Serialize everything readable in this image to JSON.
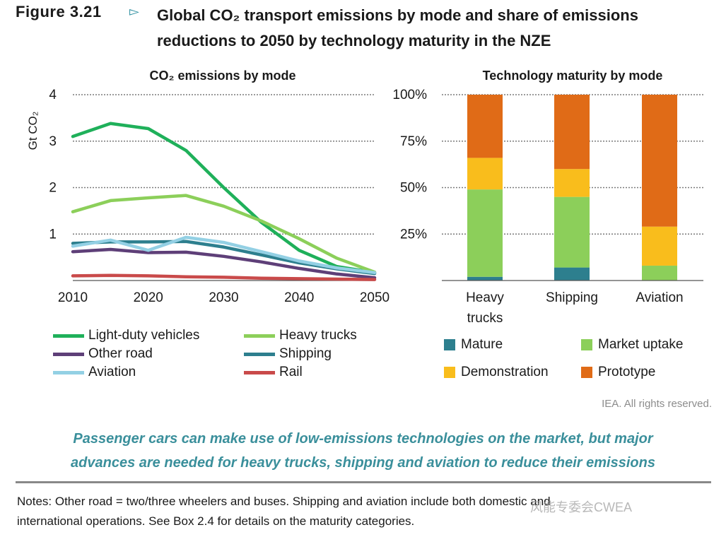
{
  "header": {
    "figure_label": "Figure 3.21",
    "arrow": "▻",
    "title_line1": "Global CO₂ transport emissions by mode and share of emissions",
    "title_line2": "reductions to 2050 by technology maturity in the NZE"
  },
  "chart_data": [
    {
      "type": "line",
      "title": "CO₂ emissions by mode",
      "ylabel": "Gt CO₂",
      "xlabel": "",
      "x": [
        2010,
        2015,
        2020,
        2025,
        2030,
        2035,
        2040,
        2045,
        2050
      ],
      "xticks": [
        "2010",
        "2020",
        "2030",
        "2040",
        "2050"
      ],
      "yticks": [
        "1",
        "2",
        "3",
        "4"
      ],
      "xlim": [
        2010,
        2050
      ],
      "ylim": [
        0,
        4
      ],
      "grid": true,
      "series": [
        {
          "name": "Light-duty vehicles",
          "color": "#1fb05a",
          "values": [
            3.1,
            3.38,
            3.27,
            2.8,
            2.0,
            1.25,
            0.65,
            0.3,
            0.17
          ]
        },
        {
          "name": "Heavy trucks",
          "color": "#8ccf5a",
          "values": [
            1.48,
            1.72,
            1.78,
            1.83,
            1.6,
            1.28,
            0.9,
            0.48,
            0.18
          ]
        },
        {
          "name": "Other road",
          "color": "#5e3f78",
          "values": [
            0.62,
            0.67,
            0.6,
            0.61,
            0.52,
            0.4,
            0.26,
            0.14,
            0.06
          ]
        },
        {
          "name": "Shipping",
          "color": "#2d7f8e",
          "values": [
            0.8,
            0.83,
            0.83,
            0.84,
            0.72,
            0.55,
            0.38,
            0.25,
            0.15
          ]
        },
        {
          "name": "Aviation",
          "color": "#93d0e4",
          "values": [
            0.74,
            0.87,
            0.65,
            0.93,
            0.82,
            0.62,
            0.42,
            0.27,
            0.17
          ]
        },
        {
          "name": "Rail",
          "color": "#c94a4a",
          "values": [
            0.1,
            0.11,
            0.1,
            0.08,
            0.07,
            0.05,
            0.04,
            0.03,
            0.02
          ]
        }
      ]
    },
    {
      "type": "bar",
      "stacked": true,
      "title": "Technology maturity by mode",
      "categories": [
        "Heavy trucks",
        "Shipping",
        "Aviation"
      ],
      "category_lines": [
        [
          "Heavy",
          "trucks"
        ],
        [
          "Shipping"
        ],
        [
          "Aviation"
        ]
      ],
      "yticks": [
        "25%",
        "50%",
        "75%",
        "100%"
      ],
      "ylim": [
        0,
        100
      ],
      "grid": true,
      "series": [
        {
          "name": "Mature",
          "color": "#2d7f8e",
          "values": [
            2,
            7,
            0
          ]
        },
        {
          "name": "Market uptake",
          "color": "#8ccf5a",
          "values": [
            47,
            38,
            8
          ]
        },
        {
          "name": "Demonstration",
          "color": "#f9bd1c",
          "values": [
            17,
            15,
            21
          ]
        },
        {
          "name": "Prototype",
          "color": "#e06b17",
          "values": [
            34,
            40,
            71
          ]
        }
      ]
    }
  ],
  "legend_left": [
    "Light-duty vehicles",
    "Heavy trucks",
    "Other road",
    "Shipping",
    "Aviation",
    "Rail"
  ],
  "legend_right": [
    "Mature",
    "Market uptake",
    "Demonstration",
    "Prototype"
  ],
  "rights": "IEA. All rights reserved.",
  "caption_line1": "Passenger cars can make use of low-emissions technologies on the market, but major",
  "caption_line2": "advances are needed for heavy trucks, shipping and aviation to reduce their emissions",
  "notes_line1": "Notes: Other road = two/three wheelers and buses. Shipping and aviation include both domestic and",
  "notes_line2": "international operations. See Box 2.4 for details on the maturity categories.",
  "watermark": "风能专委会CWEA"
}
